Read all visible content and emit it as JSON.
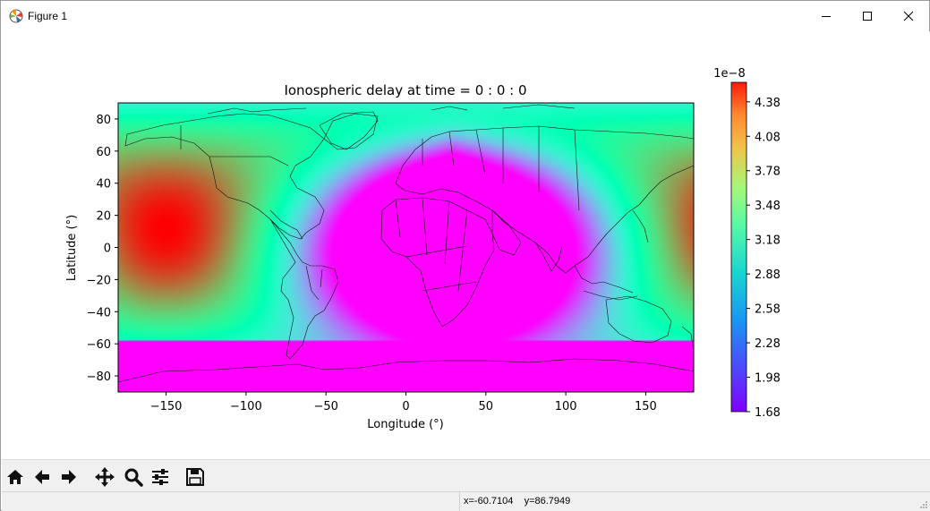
{
  "window": {
    "title": "Figure 1",
    "icons": {
      "app": "matplotlib-icon",
      "minimize": "minimize-icon",
      "maximize": "maximize-icon",
      "close": "close-icon"
    }
  },
  "toolbar": {
    "tools": [
      {
        "name": "home",
        "icon": "home-icon"
      },
      {
        "name": "back",
        "icon": "arrow-left-icon"
      },
      {
        "name": "forward",
        "icon": "arrow-right-icon"
      },
      {
        "name": "pan",
        "icon": "move-icon"
      },
      {
        "name": "zoom",
        "icon": "magnifier-icon"
      },
      {
        "name": "configure-subplots",
        "icon": "sliders-icon"
      },
      {
        "name": "save",
        "icon": "floppy-disk-icon"
      }
    ]
  },
  "status": {
    "coords": "x=-60.7104    y=86.7949"
  },
  "chart_data": {
    "type": "heatmap",
    "title": "Ionospheric delay at time = 0 : 0 : 0",
    "xlabel": "Longitude (°)",
    "ylabel": "Latitude (°)",
    "xlim": [
      -180,
      180
    ],
    "ylim": [
      -90,
      90
    ],
    "xticks": [
      -150,
      -100,
      -50,
      0,
      50,
      100,
      150
    ],
    "xtick_labels": [
      "−150",
      "−100",
      "−50",
      "0",
      "50",
      "100",
      "150"
    ],
    "yticks": [
      80,
      60,
      40,
      20,
      0,
      -20,
      -40,
      -60,
      -80
    ],
    "ytick_labels": [
      "80",
      "60",
      "40",
      "20",
      "0",
      "−20",
      "−40",
      "−60",
      "−80"
    ],
    "colormap": "rainbow",
    "colorbar": {
      "offset_label": "1e−8",
      "vmin": 1.68,
      "vmax": 4.55,
      "ticks": [
        1.68,
        1.98,
        2.28,
        2.58,
        2.88,
        3.18,
        3.48,
        3.78,
        4.08,
        4.38
      ],
      "tick_labels": [
        "1.68",
        "1.98",
        "2.28",
        "2.58",
        "2.88",
        "3.18",
        "3.48",
        "3.78",
        "4.08",
        "4.38"
      ]
    },
    "peak": {
      "longitude": -150,
      "latitude": 12,
      "value": 4.55
    },
    "background_value": 1.68,
    "overlay": "world coastlines and country borders"
  }
}
